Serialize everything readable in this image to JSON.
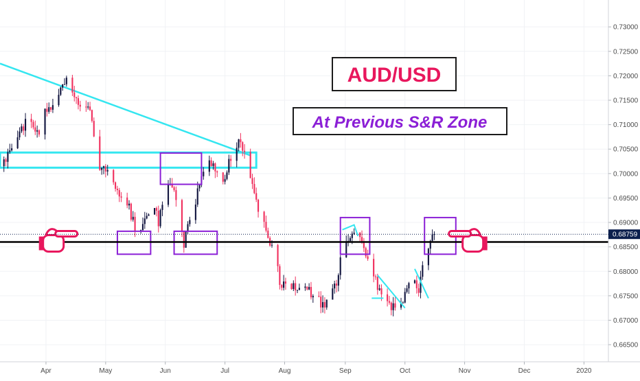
{
  "chart_data": {
    "type": "candlestick",
    "title": "AUD/USD",
    "subtitle": "At Previous S&R Zone",
    "x": {
      "labels": [
        "Apr",
        "May",
        "Jun",
        "Jul",
        "Aug",
        "Sep",
        "Oct",
        "Nov",
        "Dec",
        "2020"
      ],
      "positions": [
        0.5,
        31.0,
        61.5,
        92.0,
        122.5,
        153.5,
        184.0,
        214.5,
        245.0,
        275.5
      ],
      "range": [
        -23,
        288
      ]
    },
    "y": {
      "ticks": [
        "0.73000",
        "0.72500",
        "0.72000",
        "0.71500",
        "0.71000",
        "0.70500",
        "0.70000",
        "0.69500",
        "0.69000",
        "0.68500",
        "0.68000",
        "0.67500",
        "0.67000",
        "0.66500"
      ],
      "tick_values": [
        0.73,
        0.725,
        0.72,
        0.715,
        0.71,
        0.705,
        0.7,
        0.695,
        0.69,
        0.685,
        0.68,
        0.675,
        0.67,
        0.665
      ],
      "range": [
        0.6615,
        0.7355
      ]
    },
    "last_price": {
      "label": "0.68759",
      "value": 0.68759,
      "color": "#0b1f4d"
    },
    "colors": {
      "up": "#131640",
      "down": "#f0305e",
      "trend": "#34e6f0",
      "zone_box": "#8b1fd6",
      "title": "#e8175d",
      "subtitle": "#8b1fd6",
      "hand": "#e8175d"
    },
    "price_path": {
      "days": [
        -22,
        -15,
        -8,
        -3,
        0,
        5,
        9,
        11,
        14,
        18,
        23,
        28,
        33,
        38,
        43,
        47,
        49,
        52,
        56,
        58,
        62,
        66,
        69,
        71,
        75,
        79,
        83,
        87,
        90,
        94,
        98,
        100,
        104,
        110,
        114,
        118,
        121,
        124,
        126,
        130,
        134,
        138,
        142,
        146,
        149,
        151,
        154,
        157,
        160,
        163,
        165,
        170,
        174,
        176,
        180,
        185,
        188,
        191,
        193,
        196,
        198,
        199
      ],
      "prices": [
        0.7015,
        0.707,
        0.7115,
        0.708,
        0.7125,
        0.7145,
        0.718,
        0.7195,
        0.716,
        0.7145,
        0.7125,
        0.7015,
        0.7,
        0.696,
        0.693,
        0.6872,
        0.6878,
        0.6915,
        0.6925,
        0.6902,
        0.699,
        0.6965,
        0.6905,
        0.6858,
        0.6915,
        0.698,
        0.7025,
        0.7005,
        0.6965,
        0.7025,
        0.7055,
        0.7075,
        0.7,
        0.6915,
        0.6875,
        0.6818,
        0.6765,
        0.6788,
        0.677,
        0.677,
        0.6762,
        0.675,
        0.6732,
        0.6745,
        0.6775,
        0.683,
        0.6862,
        0.6876,
        0.6872,
        0.6858,
        0.6815,
        0.6772,
        0.6752,
        0.6732,
        0.6722,
        0.6755,
        0.6795,
        0.6762,
        0.6815,
        0.6852,
        0.6868,
        0.68759
      ]
    },
    "annotations": {
      "horizontal_line": {
        "value": 0.686
      },
      "descending_trendline": [
        {
          "day": -23,
          "value": 0.7225
        },
        {
          "day": 105,
          "value": 0.7037
        }
      ],
      "resistance_channel": {
        "from_day": -23,
        "to_day": 108,
        "top": 0.7043,
        "bottom": 0.7012
      },
      "boxes": [
        {
          "from_day": 37,
          "to_day": 54,
          "top": 0.6882,
          "bottom": 0.6835
        },
        {
          "from_day": 59,
          "to_day": 80,
          "top": 0.7042,
          "bottom": 0.6978
        },
        {
          "from_day": 66,
          "to_day": 88,
          "top": 0.6882,
          "bottom": 0.6835
        },
        {
          "from_day": 151,
          "to_day": 166,
          "top": 0.691,
          "bottom": 0.6835
        },
        {
          "from_day": 194,
          "to_day": 210,
          "top": 0.691,
          "bottom": 0.6835
        }
      ],
      "small_trendlines": [
        [
          {
            "day": 152,
            "value": 0.6885
          },
          {
            "day": 158,
            "value": 0.6895
          },
          {
            "day": 160,
            "value": 0.6872
          }
        ],
        [
          {
            "day": 167,
            "value": 0.6745
          },
          {
            "day": 173,
            "value": 0.6745
          }
        ],
        [
          {
            "day": 170,
            "value": 0.6792
          },
          {
            "day": 184,
            "value": 0.6725
          }
        ],
        [
          {
            "day": 189,
            "value": 0.6805
          },
          {
            "day": 196,
            "value": 0.6745
          }
        ]
      ],
      "pointing_hands": [
        {
          "day": -1,
          "value": 0.686,
          "direction": "right"
        },
        {
          "day": 224,
          "value": 0.686,
          "direction": "left"
        }
      ]
    }
  }
}
